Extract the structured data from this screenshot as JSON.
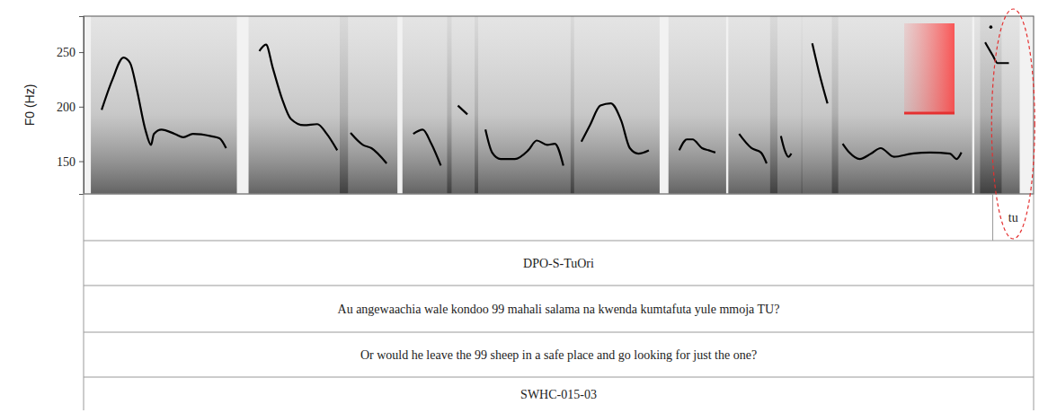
{
  "chart_data": {
    "type": "line",
    "y_label": "F0 (Hz)",
    "ylim": [
      120,
      283
    ],
    "yticks": [
      150,
      200,
      250
    ],
    "xlim": [
      0,
      100
    ],
    "tick_labels": "y",
    "x": [
      1.9,
      3.0,
      4.2,
      4.9,
      5.6,
      6.5,
      7.1,
      7.4,
      8.2,
      9.6,
      10.5,
      11.5,
      13.4,
      14.3,
      15.0,
      null,
      18.5,
      19.2,
      19.9,
      20.9,
      21.8,
      23.2,
      24.6,
      25.6,
      26.7,
      null,
      28.1,
      29.4,
      30.3,
      31.9,
      null,
      34.7,
      35.7,
      36.6,
      37.6,
      null,
      39.4,
      40.4,
      null,
      42.3,
      43.0,
      43.9,
      45.4,
      46.8,
      47.7,
      48.8,
      49.6,
      50.5,
      null,
      52.4,
      53.3,
      54.4,
      55.5,
      56.6,
      57.5,
      58.4,
      59.5,
      null,
      62.7,
      63.5,
      64.1,
      65.1,
      65.8,
      66.5,
      null,
      69.0,
      70.3,
      71.3,
      71.9,
      null,
      73.4,
      73.8,
      74.2,
      74.5,
      null,
      76.7,
      77.4,
      78.3,
      null,
      79.9,
      80.6,
      81.7,
      82.9,
      83.9,
      85.3,
      87.2,
      89.1,
      91.2,
      91.9,
      92.4,
      null,
      95.5,
      null,
      94.9,
      95.7,
      96.2,
      97.4
    ],
    "series": [
      {
        "name": "F0",
        "color": "#000000",
        "values": [
          197,
          224,
          245,
          240,
          216,
          179,
          165,
          175,
          179,
          175,
          172,
          175,
          173,
          171,
          162,
          null,
          251,
          257,
          236,
          207,
          189,
          183,
          184,
          175,
          160,
          null,
          176,
          165,
          162,
          148,
          null,
          175,
          179,
          166,
          146,
          null,
          201,
          193,
          null,
          179,
          158,
          152,
          152,
          160,
          169,
          165,
          166,
          146,
          null,
          168,
          183,
          201,
          203,
          187,
          162,
          157,
          160,
          null,
          160,
          170,
          170,
          162,
          160,
          158,
          null,
          175,
          162,
          158,
          148,
          null,
          173,
          160,
          154,
          157,
          null,
          258,
          232,
          203,
          null,
          166,
          158,
          152,
          157,
          162,
          154,
          157,
          158,
          157,
          152,
          158,
          null,
          273,
          null,
          259,
          247,
          240,
          240
        ]
      }
    ],
    "tiers": [
      [
        {
          "text": "tu",
          "start": 95.7,
          "end": 100
        }
      ],
      [
        {
          "text": "DPO-S-TuOri",
          "start": 0,
          "end": 100
        }
      ],
      [
        {
          "text": "Au angewaachia wale kondoo 99 mahali salama na kwenda kumtafuta yule mmoja TU?",
          "start": 0,
          "end": 100
        }
      ],
      [
        {
          "text": "Or would he leave the 99 sheep in a safe place and go looking for just the one?",
          "start": 0,
          "end": 100
        }
      ],
      [
        {
          "text": "SWHC-015-03",
          "start": 0,
          "end": 100
        }
      ]
    ]
  }
}
